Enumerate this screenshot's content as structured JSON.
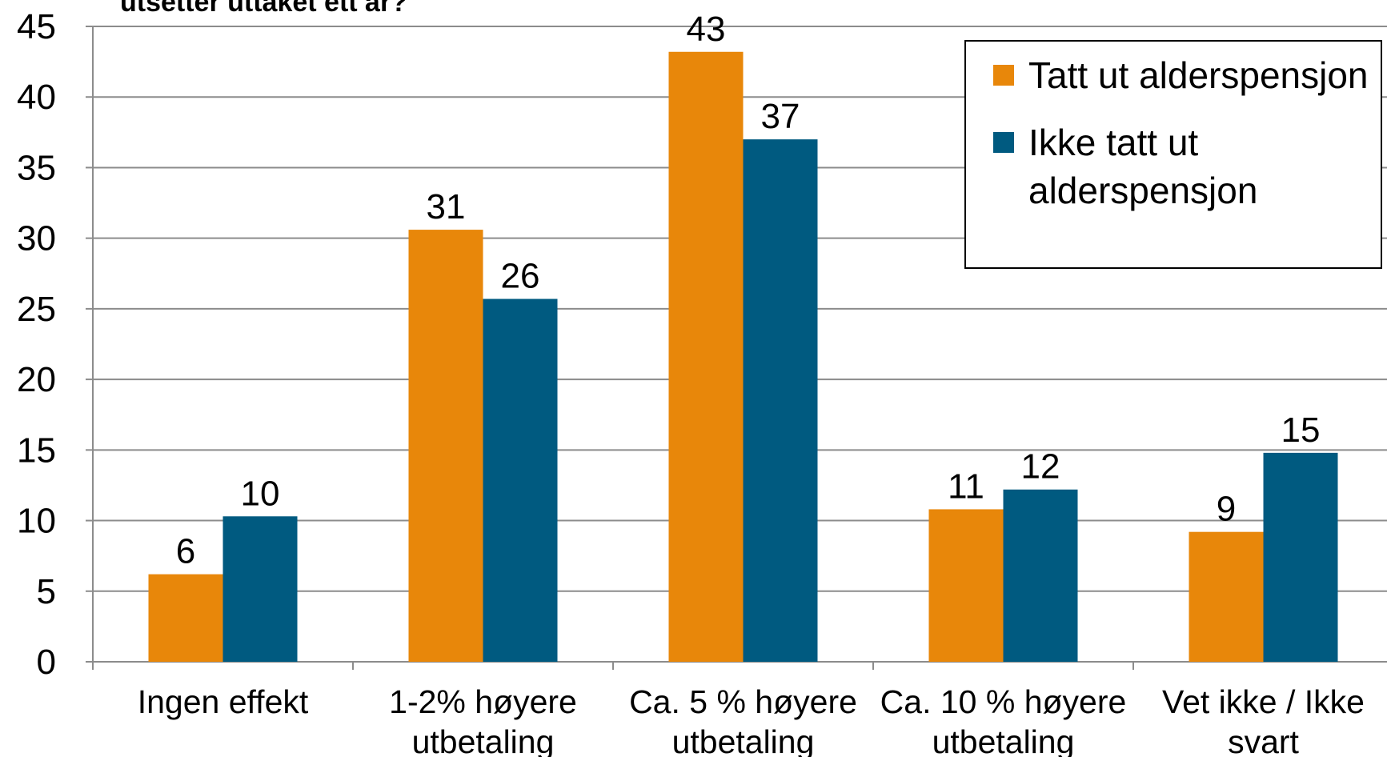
{
  "chart_data": {
    "type": "bar",
    "title": "utsetter uttaket ett år?",
    "categories": [
      "Ingen effekt",
      "1-2% høyere utbetaling",
      "Ca. 5 % høyere utbetaling",
      "Ca. 10 % høyere utbetaling",
      "Vet ikke / Ikke svart"
    ],
    "series": [
      {
        "name": "Tatt ut alderspensjon",
        "color": "#e8870a",
        "values": [
          6.2,
          30.6,
          43.2,
          10.8,
          9.2
        ],
        "value_labels": [
          "6",
          "31",
          "43",
          "11",
          "9"
        ]
      },
      {
        "name": "Ikke tatt ut alderspensjon",
        "color": "#005a80",
        "values": [
          10.3,
          25.7,
          37,
          12.2,
          14.8
        ],
        "value_labels": [
          "10",
          "26",
          "37",
          "12",
          "15"
        ]
      }
    ],
    "ylim": [
      0,
      45
    ],
    "yticks": [
      0,
      5,
      10,
      15,
      20,
      25,
      30,
      35,
      40,
      45
    ],
    "grid": true,
    "legend": "top-right"
  }
}
